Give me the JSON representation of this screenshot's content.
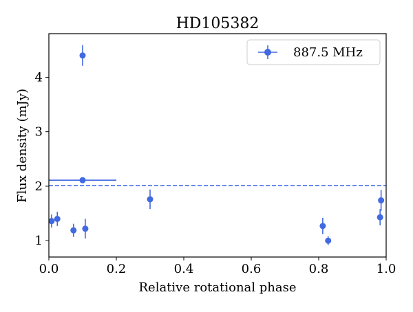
{
  "chart_data": {
    "type": "scatter",
    "title": "HD105382",
    "xlabel": "Relative rotational phase",
    "ylabel": "Flux density (mJy)",
    "xlim": [
      0.0,
      1.0
    ],
    "ylim": [
      0.7,
      4.8
    ],
    "xticks": [
      0.0,
      0.2,
      0.4,
      0.6,
      0.8,
      1.0
    ],
    "xtick_labels": [
      "0.0",
      "0.2",
      "0.4",
      "0.6",
      "0.8",
      "1.0"
    ],
    "yticks": [
      1,
      2,
      3,
      4
    ],
    "ytick_labels": [
      "1",
      "2",
      "3",
      "4"
    ],
    "legend": {
      "position": "top-right",
      "label": "887.5 MHz"
    },
    "color": "#4169e1",
    "series": [
      {
        "name": "887.5 MHz",
        "points": [
          {
            "x": 0.008,
            "y": 1.36,
            "yerr": 0.12
          },
          {
            "x": 0.025,
            "y": 1.4,
            "yerr": 0.13
          },
          {
            "x": 0.073,
            "y": 1.19,
            "yerr": 0.12
          },
          {
            "x": 0.1,
            "y": 4.4,
            "yerr": 0.19
          },
          {
            "x": 0.1,
            "y": 2.11,
            "xerr": 0.1
          },
          {
            "x": 0.108,
            "y": 1.22,
            "yerr": 0.18
          },
          {
            "x": 0.3,
            "y": 1.76,
            "yerr": 0.18
          },
          {
            "x": 0.812,
            "y": 1.27,
            "yerr": 0.15
          },
          {
            "x": 0.828,
            "y": 1.0,
            "yerr": 0.08
          },
          {
            "x": 0.982,
            "y": 1.43,
            "yerr": 0.15
          },
          {
            "x": 0.985,
            "y": 1.74,
            "yerr": 0.19
          }
        ]
      }
    ],
    "reference_line": {
      "y": 2.01,
      "style": "dashed"
    }
  }
}
